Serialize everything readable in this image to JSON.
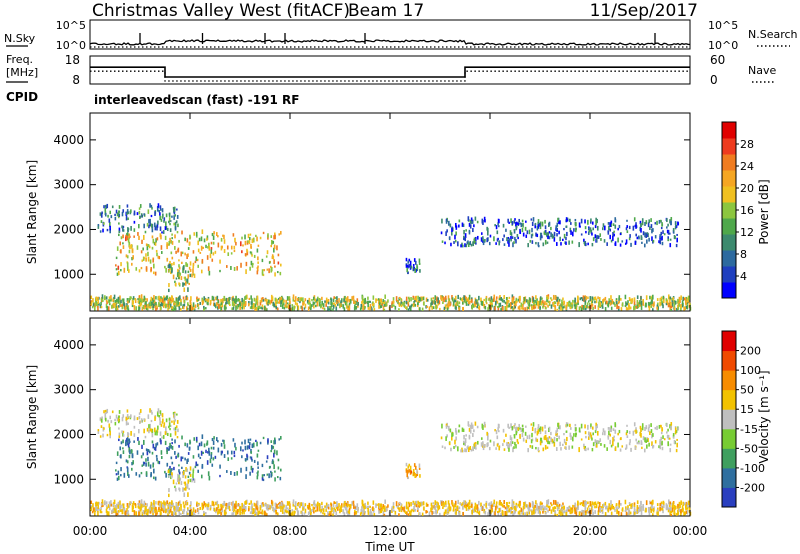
{
  "header": {
    "site": "Christmas Valley West (fitACF)",
    "beam": "Beam 17",
    "date": "11/Sep/2017"
  },
  "nsky_panel": {
    "left_label": "N.Sky",
    "left_ticks": [
      "10^5",
      "10^0"
    ],
    "right_ticks": [
      "10^5",
      "10^0"
    ],
    "right_label": "N.Search"
  },
  "freq_panel": {
    "left_label_line1": "Freq.",
    "left_label_line2": "[MHz]",
    "left_ticks": [
      "18",
      "8"
    ],
    "right_ticks": [
      "60",
      "0"
    ],
    "right_label": "Nave",
    "cpid_label": "CPID",
    "cpid_text": "interleavedscan (fast) -191 RF"
  },
  "power_panel": {
    "colorbar_label": "Power [dB]",
    "colorbar_ticks": [
      "28",
      "24",
      "20",
      "16",
      "12",
      "8",
      "4"
    ],
    "colors": [
      "#0000ff",
      "#1f3fbf",
      "#2d6a9f",
      "#3c8a6e",
      "#4fa84b",
      "#8cc63f",
      "#f0c020",
      "#f5a623",
      "#f07c20",
      "#ee3b1f",
      "#e00000"
    ]
  },
  "velocity_panel": {
    "colorbar_label": "Velocity [m s⁻¹]",
    "colorbar_ticks": [
      "200",
      "100",
      "50",
      "15",
      "-15",
      "-50",
      "-100",
      "-200"
    ],
    "colors": [
      "#e00000",
      "#f04a00",
      "#f78c00",
      "#f2c200",
      "#bfbfbf",
      "#77cc33",
      "#3f9f5f",
      "#2f6f9f",
      "#2a3fbf"
    ]
  },
  "chart_data": {
    "type": "heatmap",
    "xlabel": "Time UT",
    "xticks": [
      "00:00",
      "04:00",
      "08:00",
      "12:00",
      "16:00",
      "20:00",
      "00:00"
    ],
    "xrange_hours": [
      0,
      24
    ],
    "ylabel": "Slant Range [km]",
    "yticks": [
      1000,
      2000,
      3000,
      4000
    ],
    "yrange_km": [
      180,
      4600
    ],
    "freq_step": {
      "hours": [
        0,
        3.0,
        3.0,
        15.0,
        15.0,
        24
      ],
      "mhz": [
        14,
        14,
        10.5,
        10.5,
        14,
        14
      ]
    },
    "series": [
      {
        "name": "Power [dB]",
        "unit": "dB",
        "range": [
          0,
          30
        ]
      },
      {
        "name": "Velocity [m s⁻¹]",
        "unit": "m/s",
        "range": [
          -250,
          250
        ]
      }
    ],
    "echo_regions": [
      {
        "t_start": 1.0,
        "t_end": 7.6,
        "r_start": 950,
        "r_end": 1900,
        "power": 18,
        "velocity": -160
      },
      {
        "t_start": 3.1,
        "t_end": 4.2,
        "r_start": 600,
        "r_end": 1200,
        "power": 14,
        "velocity": 5
      },
      {
        "t_start": 0.3,
        "t_end": 3.5,
        "r_start": 1900,
        "r_end": 2500,
        "power": 8,
        "velocity": 5
      },
      {
        "t_start": 12.6,
        "t_end": 13.2,
        "r_start": 1000,
        "r_end": 1300,
        "power": 6,
        "velocity": 80
      },
      {
        "t_start": 14.0,
        "t_end": 23.5,
        "r_start": 1600,
        "r_end": 2200,
        "power": 6,
        "velocity": 0
      },
      {
        "t_start": 0.0,
        "t_end": 24.0,
        "r_start": 180,
        "r_end": 450,
        "power": 16,
        "velocity": 40
      }
    ]
  }
}
